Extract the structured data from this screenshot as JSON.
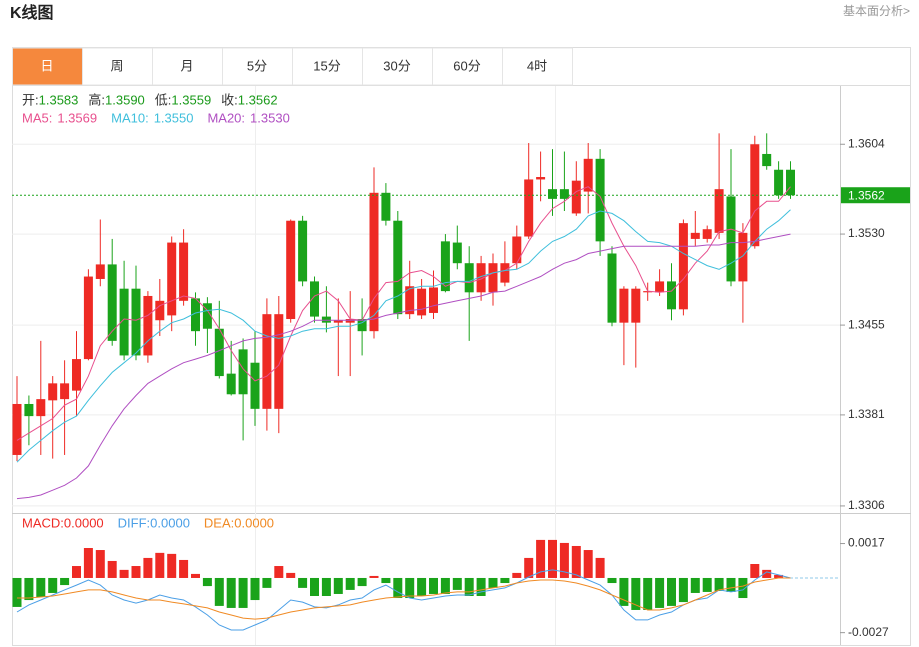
{
  "header": {
    "title": "K线图",
    "link": "基本面分析>"
  },
  "tabs": [
    "日",
    "周",
    "月",
    "5分",
    "15分",
    "30分",
    "60分",
    "4时"
  ],
  "active_tab": 0,
  "chart_data": [
    {
      "type": "candlestick",
      "ohlc_info": [
        {
          "label": "开:",
          "value": 1.3583
        },
        {
          "label": "高:",
          "value": 1.359,
          "value_label": "1.3590"
        },
        {
          "label": "低:",
          "value": 1.3559
        },
        {
          "label": "收:",
          "value": 1.3562
        }
      ],
      "open": [
        1.3348,
        1.339,
        1.338,
        1.3393,
        1.3394,
        1.3401,
        1.3427,
        1.3493,
        1.3505,
        1.3485,
        1.3485,
        1.343,
        1.3459,
        1.3463,
        1.3475,
        1.3477,
        1.3473,
        1.3452,
        1.3415,
        1.3435,
        1.3424,
        1.3386,
        1.3386,
        1.346,
        1.3541,
        1.3491,
        1.3462,
        1.3457,
        1.3457,
        1.346,
        1.345,
        1.3564,
        1.3541,
        1.3464,
        1.3463,
        1.3465,
        1.3524,
        1.3523,
        1.3506,
        1.3482,
        1.3482,
        1.349,
        1.3506,
        1.3528,
        1.3575,
        1.3567,
        1.3567,
        1.3547,
        1.3565,
        1.3592,
        1.3514,
        1.3457,
        1.3457,
        1.3482,
        1.3482,
        1.3491,
        1.3468,
        1.3526,
        1.3526,
        1.3531,
        1.3561,
        1.3491,
        1.352,
        1.3596,
        1.3583,
        1.3583
      ],
      "high": [
        1.3413,
        1.3397,
        1.3442,
        1.3413,
        1.3426,
        1.345,
        1.3501,
        1.3542,
        1.3526,
        1.3508,
        1.3504,
        1.3483,
        1.3493,
        1.3528,
        1.3534,
        1.3482,
        1.3478,
        1.3475,
        1.3442,
        1.3444,
        1.345,
        1.3477,
        1.3479,
        1.3542,
        1.3545,
        1.3495,
        1.3487,
        1.3477,
        1.3483,
        1.3477,
        1.3585,
        1.3572,
        1.3549,
        1.3508,
        1.3493,
        1.35,
        1.353,
        1.3537,
        1.352,
        1.3512,
        1.3514,
        1.3524,
        1.3537,
        1.3605,
        1.3598,
        1.36,
        1.3598,
        1.359,
        1.3605,
        1.36,
        1.352,
        1.3487,
        1.3487,
        1.349,
        1.3501,
        1.3506,
        1.3542,
        1.3549,
        1.3537,
        1.3613,
        1.36,
        1.3539,
        1.3611,
        1.3613,
        1.359,
        1.359
      ],
      "low": [
        1.3343,
        1.3356,
        1.3348,
        1.3345,
        1.3348,
        1.338,
        1.3426,
        1.3487,
        1.3438,
        1.3426,
        1.3426,
        1.3424,
        1.3446,
        1.345,
        1.3471,
        1.3438,
        1.3432,
        1.3411,
        1.3397,
        1.336,
        1.3372,
        1.3368,
        1.3366,
        1.3457,
        1.3487,
        1.3457,
        1.3449,
        1.3413,
        1.3413,
        1.343,
        1.3444,
        1.3537,
        1.346,
        1.346,
        1.346,
        1.346,
        1.3482,
        1.3501,
        1.3442,
        1.3475,
        1.3471,
        1.3487,
        1.3501,
        1.3526,
        1.3557,
        1.3545,
        1.3549,
        1.3545,
        1.3547,
        1.3512,
        1.3454,
        1.3422,
        1.342,
        1.3475,
        1.3479,
        1.3459,
        1.3463,
        1.352,
        1.3523,
        1.3526,
        1.3487,
        1.3457,
        1.3518,
        1.3583,
        1.3559,
        1.3559
      ],
      "close": [
        1.339,
        1.338,
        1.3394,
        1.3407,
        1.3407,
        1.3427,
        1.3495,
        1.3505,
        1.3442,
        1.343,
        1.343,
        1.3479,
        1.3475,
        1.3523,
        1.3523,
        1.345,
        1.3452,
        1.3413,
        1.3398,
        1.3398,
        1.3386,
        1.3464,
        1.3464,
        1.3541,
        1.3491,
        1.3462,
        1.3457,
        1.3459,
        1.346,
        1.345,
        1.3564,
        1.3541,
        1.3464,
        1.3487,
        1.3485,
        1.3486,
        1.3483,
        1.3506,
        1.3482,
        1.3506,
        1.3506,
        1.3506,
        1.3528,
        1.3575,
        1.3577,
        1.3559,
        1.3559,
        1.3574,
        1.3592,
        1.3524,
        1.3457,
        1.3485,
        1.3485,
        1.3483,
        1.3491,
        1.3468,
        1.3539,
        1.3531,
        1.3534,
        1.3567,
        1.3491,
        1.3531,
        1.3604,
        1.3586,
        1.3562,
        1.3562
      ],
      "up_color": "#ee2a24",
      "down_color": "#1aa31a",
      "series": [
        {
          "name": "MA5:",
          "color": "#e8508e",
          "current": 1.3569,
          "values": [
            1.336,
            1.3366,
            1.3372,
            1.3378,
            1.3389,
            1.3394,
            1.3413,
            1.3438,
            1.345,
            1.346,
            1.3459,
            1.3463,
            1.3471,
            1.3475,
            1.3479,
            1.3477,
            1.3467,
            1.3452,
            1.3434,
            1.3419,
            1.3409,
            1.3413,
            1.3422,
            1.3446,
            1.3467,
            1.3479,
            1.3483,
            1.3475,
            1.346,
            1.3459,
            1.3477,
            1.349,
            1.3491,
            1.3498,
            1.35,
            1.3495,
            1.3487,
            1.3491,
            1.349,
            1.3493,
            1.3498,
            1.35,
            1.3506,
            1.3524,
            1.3539,
            1.3551,
            1.3557,
            1.3565,
            1.3569,
            1.3561,
            1.3539,
            1.352,
            1.3504,
            1.3483,
            1.3482,
            1.3483,
            1.3493,
            1.3506,
            1.3516,
            1.3532,
            1.3534,
            1.3531,
            1.3549,
            1.3557,
            1.3557,
            1.3569
          ]
        },
        {
          "name": "MA10:",
          "color": "#3fbfdc",
          "current": 1.355,
          "current_label": "1.3550",
          "values": [
            1.3342,
            1.3352,
            1.336,
            1.3368,
            1.3375,
            1.338,
            1.3393,
            1.3405,
            1.3416,
            1.3424,
            1.3432,
            1.3442,
            1.345,
            1.3457,
            1.346,
            1.3465,
            1.3467,
            1.3468,
            1.3465,
            1.3459,
            1.345,
            1.3446,
            1.3444,
            1.3446,
            1.345,
            1.3452,
            1.3452,
            1.3454,
            1.3454,
            1.3457,
            1.3463,
            1.3475,
            1.3479,
            1.3485,
            1.3487,
            1.3487,
            1.349,
            1.3491,
            1.3491,
            1.3495,
            1.3498,
            1.35,
            1.3501,
            1.3506,
            1.3516,
            1.3524,
            1.3528,
            1.3534,
            1.3545,
            1.3549,
            1.3547,
            1.3541,
            1.3532,
            1.3524,
            1.3523,
            1.352,
            1.3514,
            1.3509,
            1.3504,
            1.3501,
            1.3506,
            1.3512,
            1.3524,
            1.3534,
            1.3541,
            1.355
          ]
        },
        {
          "name": "MA20:",
          "color": "#b04fc2",
          "current": 1.353,
          "current_label": "1.3530",
          "values": [
            1.3312,
            1.3313,
            1.3315,
            1.3319,
            1.3323,
            1.3329,
            1.3339,
            1.3356,
            1.3372,
            1.3386,
            1.3397,
            1.3407,
            1.3413,
            1.3419,
            1.3424,
            1.3427,
            1.343,
            1.3434,
            1.3438,
            1.3442,
            1.3444,
            1.3445,
            1.3447,
            1.345,
            1.3454,
            1.3459,
            1.3459,
            1.3459,
            1.3459,
            1.3459,
            1.346,
            1.3463,
            1.3465,
            1.3467,
            1.3468,
            1.3471,
            1.3473,
            1.3475,
            1.3477,
            1.3479,
            1.3482,
            1.3483,
            1.3487,
            1.3491,
            1.3495,
            1.3501,
            1.3506,
            1.3509,
            1.3514,
            1.3516,
            1.3518,
            1.352,
            1.352,
            1.352,
            1.352,
            1.352,
            1.352,
            1.352,
            1.3521,
            1.3521,
            1.3523,
            1.3523,
            1.3524,
            1.3526,
            1.3528,
            1.353
          ]
        }
      ],
      "current_price": 1.3562,
      "current_color": "#1aa31a",
      "ylim": [
        1.3301,
        1.3652
      ],
      "yticks": [
        1.3604,
        {
          "value": 1.353,
          "label": "1.3530"
        },
        1.3455,
        1.3381,
        1.3306
      ],
      "grid": true
    },
    {
      "type": "macd",
      "histogram_name": "MACD:",
      "histogram_color": "#ee2a24",
      "histogram_current": 0,
      "histogram_current_label": "0.0000",
      "histogram": [
        -0.00143,
        -0.00109,
        -0.00094,
        -0.00074,
        -0.00035,
        0.00059,
        0.00148,
        0.00138,
        0.00084,
        0.0004,
        0.00059,
        0.00099,
        0.00124,
        0.00119,
        0.00089,
        0.0002,
        -0.0004,
        -0.00138,
        -0.00148,
        -0.00148,
        -0.00109,
        -0.00049,
        0.00059,
        0.00025,
        -0.00049,
        -0.00089,
        -0.00089,
        -0.00079,
        -0.00059,
        -0.0004,
        0.0001,
        -0.00025,
        -0.00099,
        -0.00099,
        -0.00089,
        -0.00079,
        -0.00079,
        -0.00059,
        -0.00089,
        -0.00089,
        -0.00049,
        -0.00025,
        0.00025,
        0.00099,
        0.00188,
        0.00188,
        0.00173,
        0.00158,
        0.00138,
        0.00099,
        -0.00025,
        -0.00138,
        -0.00158,
        -0.00158,
        -0.00148,
        -0.00138,
        -0.00119,
        -0.00074,
        -0.00069,
        -0.00064,
        -0.00069,
        -0.00099,
        0.00069,
        0.0004,
        0.00015,
        0
      ],
      "up_color": "#ee2a24",
      "down_color": "#1aa31a",
      "series": [
        {
          "name": "DIFF:",
          "color": "#4b9fe6",
          "current": 0,
          "current_label": "0.0000",
          "values": [
            -0.00168,
            -0.00133,
            -0.00109,
            -0.00084,
            -0.00059,
            -0.00035,
            -0.0001,
            -0.00035,
            -0.00084,
            -0.00109,
            -0.00124,
            -0.00109,
            -0.00084,
            -0.00099,
            -0.00109,
            -0.00143,
            -0.00183,
            -0.00232,
            -0.00257,
            -0.00257,
            -0.00232,
            -0.00207,
            -0.00158,
            -0.00109,
            -0.00119,
            -0.00143,
            -0.00148,
            -0.00133,
            -0.00109,
            -0.00099,
            -0.00059,
            -0.00035,
            -0.00069,
            -0.00099,
            -0.00109,
            -0.00099,
            -0.00089,
            -0.00084,
            -0.00084,
            -0.00069,
            -0.00059,
            -0.00049,
            -0.00025,
            5e-05,
            0.0003,
            0.0004,
            0.0003,
            0.00015,
            -0.0001,
            -0.00035,
            -0.00084,
            -0.00158,
            -0.00207,
            -0.00207,
            -0.00183,
            -0.00168,
            -0.00133,
            -0.00109,
            -0.00099,
            -0.00059,
            -0.00069,
            -0.00059,
            -0.0001,
            0.0003,
            0.00015,
            0
          ]
        },
        {
          "name": "DEA:",
          "color": "#f08a24",
          "current": 0,
          "current_label": "0.0000",
          "values": [
            -0.00099,
            -0.00099,
            -0.00094,
            -0.00089,
            -0.00079,
            -0.00069,
            -0.00059,
            -0.00059,
            -0.00069,
            -0.00084,
            -0.00099,
            -0.00109,
            -0.00109,
            -0.00119,
            -0.00128,
            -0.00138,
            -0.00148,
            -0.00168,
            -0.00183,
            -0.00198,
            -0.00203,
            -0.00198,
            -0.00183,
            -0.00168,
            -0.00158,
            -0.00148,
            -0.00143,
            -0.00138,
            -0.00133,
            -0.00119,
            -0.00109,
            -0.00099,
            -0.00094,
            -0.00089,
            -0.00089,
            -0.00084,
            -0.00074,
            -0.00069,
            -0.00069,
            -0.00059,
            -0.00049,
            -0.0004,
            -0.00025,
            -0.00015,
            -0.0001,
            -0.0001,
            -0.00015,
            -0.00025,
            -0.0004,
            -0.00059,
            -0.00084,
            -0.00109,
            -0.00133,
            -0.00158,
            -0.00158,
            -0.00148,
            -0.00133,
            -0.00109,
            -0.00084,
            -0.00059,
            -0.00049,
            -0.0004,
            -0.0002,
            -0.0001,
            0,
            0
          ]
        }
      ],
      "ylim": [
        -0.00331,
        0.00311
      ],
      "yticks": [
        0.0017,
        -0.0027
      ],
      "grid": false
    }
  ]
}
